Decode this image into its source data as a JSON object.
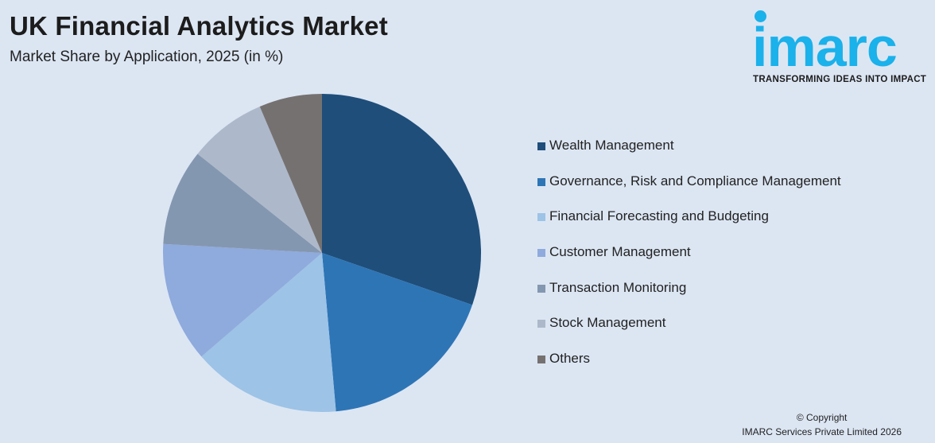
{
  "header": {
    "title": "UK Financial Analytics Market",
    "subtitle": "Market Share by Application, 2025 (in %)"
  },
  "logo": {
    "text": "imarc",
    "tagline": "TRANSFORMING IDEAS INTO IMPACT",
    "color": "#1bb1ea"
  },
  "chart_data": {
    "type": "pie",
    "title": "UK Financial Analytics Market",
    "subtitle": "Market Share by Application, 2025 (in %)",
    "legend_position": "right",
    "categories": [
      "Wealth Management",
      "Governance, Risk and Compliance Management",
      "Financial Forecasting and Budgeting",
      "Customer Management",
      "Transaction Monitoring",
      "Stock Management",
      "Others"
    ],
    "values": [
      30.3,
      18.3,
      15.1,
      12.2,
      9.8,
      7.9,
      6.4
    ],
    "colors": [
      "#1f4e7a",
      "#2e75b6",
      "#9dc3e6",
      "#8faadc",
      "#8497b0",
      "#adb9ca",
      "#767171"
    ]
  },
  "footer": {
    "copyright_line1": "© Copyright",
    "copyright_line2": "IMARC Services Private Limited 2026"
  }
}
